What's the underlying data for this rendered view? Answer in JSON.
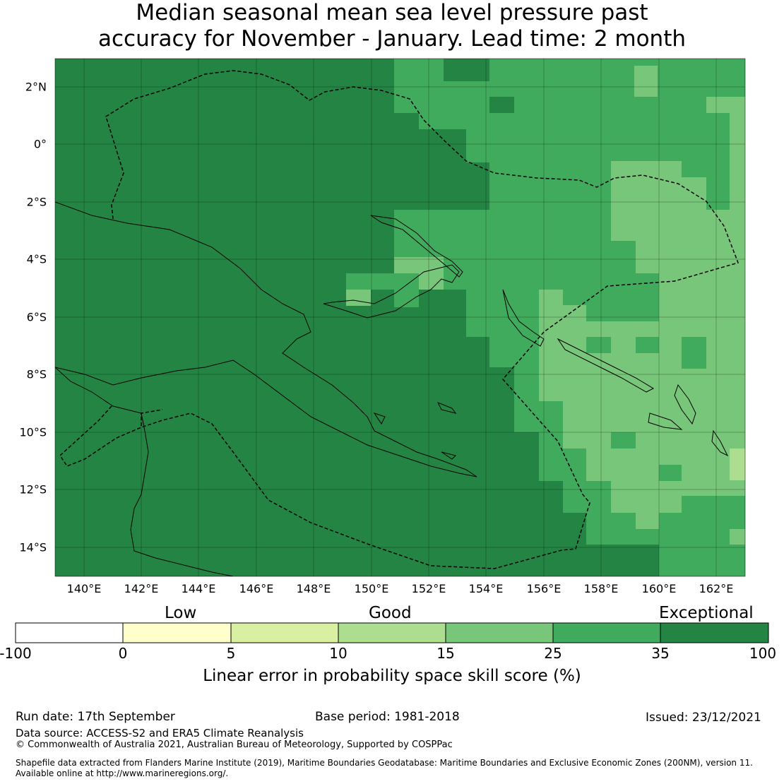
{
  "title": {
    "line1": "Median seasonal mean sea level pressure past",
    "line2": "accuracy for November - January. Lead time: 2 month"
  },
  "map": {
    "lat_labels": [
      "2°N",
      "0°",
      "2°S",
      "4°S",
      "6°S",
      "8°S",
      "10°S",
      "12°S",
      "14°S"
    ],
    "lon_labels": [
      "140°E",
      "142°E",
      "144°E",
      "146°E",
      "148°E",
      "150°E",
      "152°E",
      "154°E",
      "156°E",
      "158°E",
      "160°E",
      "162°E"
    ],
    "extent_lon": [
      139,
      163
    ],
    "extent_lat": [
      -15,
      3
    ],
    "eez_boundary": "dashed"
  },
  "colorbar": {
    "category_labels": [
      "Low",
      "Good",
      "Exceptional"
    ],
    "tick_labels": [
      "-100",
      "0",
      "5",
      "10",
      "15",
      "25",
      "35",
      "100"
    ],
    "colors": [
      "#ffffff",
      "#ffffcc",
      "#d9f0a3",
      "#addd8e",
      "#78c679",
      "#41ab5d",
      "#238443"
    ],
    "xlabel": "Linear error in probability space skill score (%)"
  },
  "footer": {
    "run_date": "Run date: 17th September",
    "base_period": "Base period: 1981-2018",
    "issued": "Issued: 23/12/2021",
    "data_source": "Data source: ACCESS-S2 and ERA5 Climate Reanalysis",
    "copyright": "© Commonwealth of Australia 2021, Australian Bureau of Meteorology, Supported by COSPPac",
    "shapefile1": "Shapefile data extracted from Flanders Marine Institute (2019), Maritime Boundaries Geodatabase: Maritime Boundaries and Exclusive Economic Zones (200NM), version 11.",
    "shapefile2": "Available online at http://www.marineregions.org/."
  }
}
